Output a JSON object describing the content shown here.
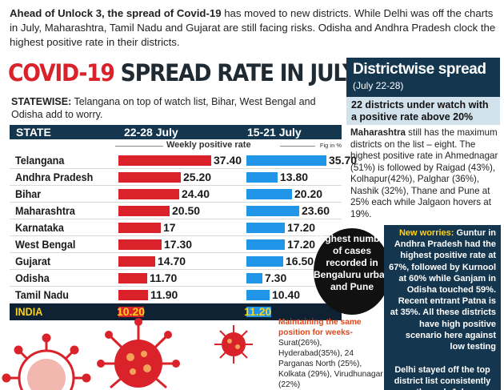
{
  "intro": {
    "lead": "Ahead of Unlock 3, the spread of Covid-19",
    "rest": " has moved to new districts. While Delhi was off the charts in July, Maharashtra, Tamil Nadu and Gujarat are still facing risks. Odisha and Andhra Pradesh clock the highest positive rate in their districts."
  },
  "headline": {
    "red": "COVID-19",
    "dark": " SPREAD RATE IN JULY"
  },
  "statewise": {
    "label": "STATEWISE:",
    "text": " Telangana on top of watch list, Bihar, West Bengal and Odisha add to worry."
  },
  "chart_data": {
    "type": "bar",
    "title": "COVID-19 SPREAD RATE IN JULY",
    "subtitle": "Weekly positive rate",
    "unit_note": "Fig in %",
    "category_header": "STATE",
    "categories": [
      "Telangana",
      "Andhra Pradesh",
      "Bihar",
      "Maharashtra",
      "Karnataka",
      "West Bengal",
      "Gujarat",
      "Odisha",
      "Tamil Nadu",
      "INDIA"
    ],
    "series": [
      {
        "name": "22-28 July",
        "color": "#d9222a",
        "values": [
          37.4,
          25.2,
          24.4,
          20.5,
          17,
          17.3,
          14.7,
          11.7,
          11.9,
          10.2
        ],
        "labels": [
          "37.40",
          "25.20",
          "24.40",
          "20.50",
          "17",
          "17.30",
          "14.70",
          "11.70",
          "11.90",
          "10.20"
        ]
      },
      {
        "name": "15-21 July",
        "color": "#2196e8",
        "values": [
          35.7,
          13.8,
          20.2,
          23.6,
          17.2,
          17.2,
          16.5,
          7.3,
          10.4,
          11.2
        ],
        "labels": [
          "35.70",
          "13.80",
          "20.20",
          "23.60",
          "17.20",
          "17.20",
          "16.50",
          "7.30",
          "10.40",
          "11.20"
        ]
      }
    ]
  },
  "callout": "Highest number of cases recorded in Bengaluru urban and Pune",
  "maintaining": {
    "label": "Maintaining the same position for weeks",
    "text": "- Surat(26%), Hyderabad(35%), 24 Parganas North (25%), Kolkata (29%), Virudhunagar (22%)"
  },
  "districtwise": {
    "title": "Districtwise spread",
    "date_range": "(July 22-28)",
    "watch": "22 districts under watch with a positive rate above 20%",
    "body_lead": "Maharashtra",
    "body": " still has the maximum districts on the list – eight. The highest positive rate in Ahmednagar (51%) is followed by Raigad (43%), Kolhapur(42%), Palghar (36%), Nashik (32%), Thane and Pune at 25% each while Jalgaon hovers at 19%."
  },
  "new_worries": {
    "label": "New worries:",
    "text": " Guntur in Andhra Pradesh had the highest positive rate at 67%, followed by Kurnool at 60% while Ganjam in Odisha touched 59%. Recent entrant Patna is at 35%. All these districts have high positive scenario here against low testing"
  },
  "delhi_note": "Delhi stayed off the top district list consistently through July",
  "colors": {
    "navy": "#15364f",
    "red": "#d9222a",
    "blue": "#2196e8",
    "yellow": "#ffd21a",
    "orange": "#e2451a"
  }
}
